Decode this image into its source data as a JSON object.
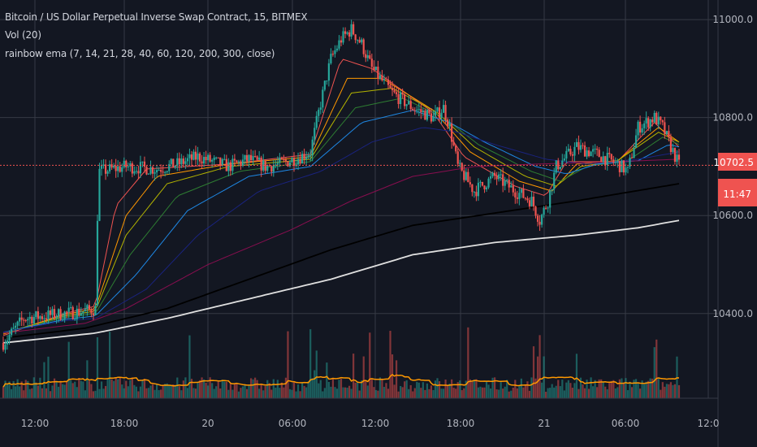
{
  "header": {
    "symbol_title": "Bitcoin / US Dollar Perpetual Inverse Swap Contract, 15, BITMEX",
    "volume_label": "Vol (20)",
    "indicator_label": "rainbow ema (7, 14, 21, 28, 40, 60, 120, 200, 300, close)"
  },
  "price_axis": {
    "tick_labels": [
      "11000.0",
      "10800.0",
      "10600.0",
      "10400.0"
    ],
    "last_price_label": "10702.5",
    "countdown_label": "11:47"
  },
  "time_axis": {
    "tick_labels": [
      "12:00",
      "18:00",
      "20",
      "06:00",
      "12:00",
      "18:00",
      "21",
      "06:00",
      "12:0"
    ]
  },
  "colors": {
    "background": "#131722",
    "grid": "#363a45",
    "up_candle": "#26a69a",
    "down_candle": "#ef5350",
    "last_price": "#ef5350",
    "volume_ma": "#ff9800"
  },
  "chart_data": {
    "type": "candlestick",
    "title": "Bitcoin / US Dollar Perpetual Inverse Swap Contract, 15, BITMEX",
    "ylim": [
      10310,
      11040
    ],
    "grid": true,
    "y_ticks": [
      11000,
      10800,
      10600,
      10400
    ],
    "x_ticks": [
      "12:00",
      "18:00",
      "20",
      "06:00",
      "12:00",
      "18:00",
      "21",
      "06:00",
      "12:0"
    ],
    "last_price": 10702.5,
    "close_path": [
      [
        0,
        10340
      ],
      [
        10,
        10390
      ],
      [
        20,
        10395
      ],
      [
        30,
        10400
      ],
      [
        40,
        10405
      ],
      [
        45,
        10410
      ],
      [
        46,
        10600
      ],
      [
        47,
        10690
      ],
      [
        60,
        10700
      ],
      [
        75,
        10695
      ],
      [
        85,
        10705
      ],
      [
        95,
        10720
      ],
      [
        110,
        10700
      ],
      [
        120,
        10715
      ],
      [
        128,
        10700
      ],
      [
        135,
        10705
      ],
      [
        145,
        10720
      ],
      [
        150,
        10730
      ],
      [
        155,
        10830
      ],
      [
        160,
        10920
      ],
      [
        165,
        10960
      ],
      [
        170,
        10980
      ],
      [
        175,
        10950
      ],
      [
        180,
        10900
      ],
      [
        190,
        10850
      ],
      [
        200,
        10820
      ],
      [
        210,
        10800
      ],
      [
        215,
        10820
      ],
      [
        218,
        10780
      ],
      [
        222,
        10700
      ],
      [
        230,
        10650
      ],
      [
        240,
        10680
      ],
      [
        250,
        10650
      ],
      [
        258,
        10630
      ],
      [
        262,
        10590
      ],
      [
        266,
        10630
      ],
      [
        270,
        10700
      ],
      [
        280,
        10740
      ],
      [
        290,
        10725
      ],
      [
        300,
        10705
      ],
      [
        305,
        10690
      ],
      [
        310,
        10780
      ],
      [
        318,
        10800
      ],
      [
        322,
        10780
      ],
      [
        325,
        10750
      ],
      [
        330,
        10702.5
      ]
    ],
    "emas": [
      {
        "color": "#ef5350",
        "path": [
          [
            0,
            10355
          ],
          [
            30,
            10400
          ],
          [
            45,
            10415
          ],
          [
            55,
            10620
          ],
          [
            70,
            10695
          ],
          [
            110,
            10705
          ],
          [
            150,
            10725
          ],
          [
            165,
            10920
          ],
          [
            180,
            10900
          ],
          [
            210,
            10810
          ],
          [
            225,
            10720
          ],
          [
            250,
            10660
          ],
          [
            265,
            10640
          ],
          [
            275,
            10710
          ],
          [
            300,
            10710
          ],
          [
            318,
            10790
          ],
          [
            330,
            10740
          ]
        ]
      },
      {
        "color": "#ff9800",
        "path": [
          [
            0,
            10358
          ],
          [
            30,
            10398
          ],
          [
            45,
            10410
          ],
          [
            60,
            10600
          ],
          [
            75,
            10680
          ],
          [
            110,
            10705
          ],
          [
            150,
            10720
          ],
          [
            168,
            10880
          ],
          [
            185,
            10880
          ],
          [
            210,
            10815
          ],
          [
            228,
            10730
          ],
          [
            252,
            10670
          ],
          [
            268,
            10650
          ],
          [
            280,
            10705
          ],
          [
            300,
            10712
          ],
          [
            320,
            10780
          ],
          [
            330,
            10750
          ]
        ]
      },
      {
        "color": "#b3b300",
        "path": [
          [
            0,
            10360
          ],
          [
            30,
            10395
          ],
          [
            45,
            10405
          ],
          [
            60,
            10560
          ],
          [
            80,
            10665
          ],
          [
            110,
            10700
          ],
          [
            150,
            10715
          ],
          [
            170,
            10850
          ],
          [
            190,
            10860
          ],
          [
            212,
            10810
          ],
          [
            230,
            10740
          ],
          [
            255,
            10680
          ],
          [
            270,
            10660
          ],
          [
            282,
            10700
          ],
          [
            300,
            10712
          ],
          [
            320,
            10770
          ],
          [
            330,
            10750
          ]
        ]
      },
      {
        "color": "#2e7d32",
        "path": [
          [
            0,
            10360
          ],
          [
            30,
            10392
          ],
          [
            45,
            10400
          ],
          [
            62,
            10520
          ],
          [
            85,
            10640
          ],
          [
            115,
            10690
          ],
          [
            150,
            10710
          ],
          [
            172,
            10820
          ],
          [
            195,
            10840
          ],
          [
            215,
            10800
          ],
          [
            232,
            10745
          ],
          [
            258,
            10690
          ],
          [
            272,
            10670
          ],
          [
            285,
            10700
          ],
          [
            305,
            10712
          ],
          [
            322,
            10760
          ],
          [
            330,
            10745
          ]
        ]
      },
      {
        "color": "#1e88e5",
        "path": [
          [
            0,
            10362
          ],
          [
            30,
            10388
          ],
          [
            45,
            10395
          ],
          [
            65,
            10480
          ],
          [
            90,
            10610
          ],
          [
            120,
            10680
          ],
          [
            150,
            10700
          ],
          [
            175,
            10790
          ],
          [
            200,
            10815
          ],
          [
            218,
            10790
          ],
          [
            235,
            10750
          ],
          [
            260,
            10700
          ],
          [
            275,
            10685
          ],
          [
            290,
            10705
          ],
          [
            310,
            10712
          ],
          [
            325,
            10745
          ],
          [
            330,
            10740
          ]
        ]
      },
      {
        "color": "#1a237e",
        "path": [
          [
            0,
            10362
          ],
          [
            30,
            10385
          ],
          [
            45,
            10390
          ],
          [
            70,
            10450
          ],
          [
            95,
            10560
          ],
          [
            125,
            10650
          ],
          [
            155,
            10690
          ],
          [
            180,
            10750
          ],
          [
            205,
            10780
          ],
          [
            222,
            10770
          ],
          [
            240,
            10745
          ],
          [
            265,
            10715
          ],
          [
            285,
            10705
          ],
          [
            310,
            10715
          ],
          [
            330,
            10730
          ]
        ]
      },
      {
        "color": "#880e4f",
        "path": [
          [
            0,
            10360
          ],
          [
            40,
            10380
          ],
          [
            60,
            10410
          ],
          [
            100,
            10500
          ],
          [
            140,
            10570
          ],
          [
            170,
            10630
          ],
          [
            200,
            10680
          ],
          [
            230,
            10700
          ],
          [
            260,
            10705
          ],
          [
            300,
            10710
          ],
          [
            330,
            10715
          ]
        ]
      },
      {
        "color": "#000000",
        "path": [
          [
            0,
            10350
          ],
          [
            40,
            10370
          ],
          [
            80,
            10410
          ],
          [
            120,
            10470
          ],
          [
            160,
            10530
          ],
          [
            200,
            10580
          ],
          [
            240,
            10605
          ],
          [
            280,
            10630
          ],
          [
            330,
            10665
          ]
        ]
      },
      {
        "color": "#e0e0e0",
        "path": [
          [
            0,
            10340
          ],
          [
            45,
            10360
          ],
          [
            80,
            10390
          ],
          [
            120,
            10430
          ],
          [
            160,
            10470
          ],
          [
            200,
            10520
          ],
          [
            240,
            10545
          ],
          [
            280,
            10560
          ],
          [
            310,
            10575
          ],
          [
            330,
            10590
          ]
        ]
      }
    ]
  }
}
